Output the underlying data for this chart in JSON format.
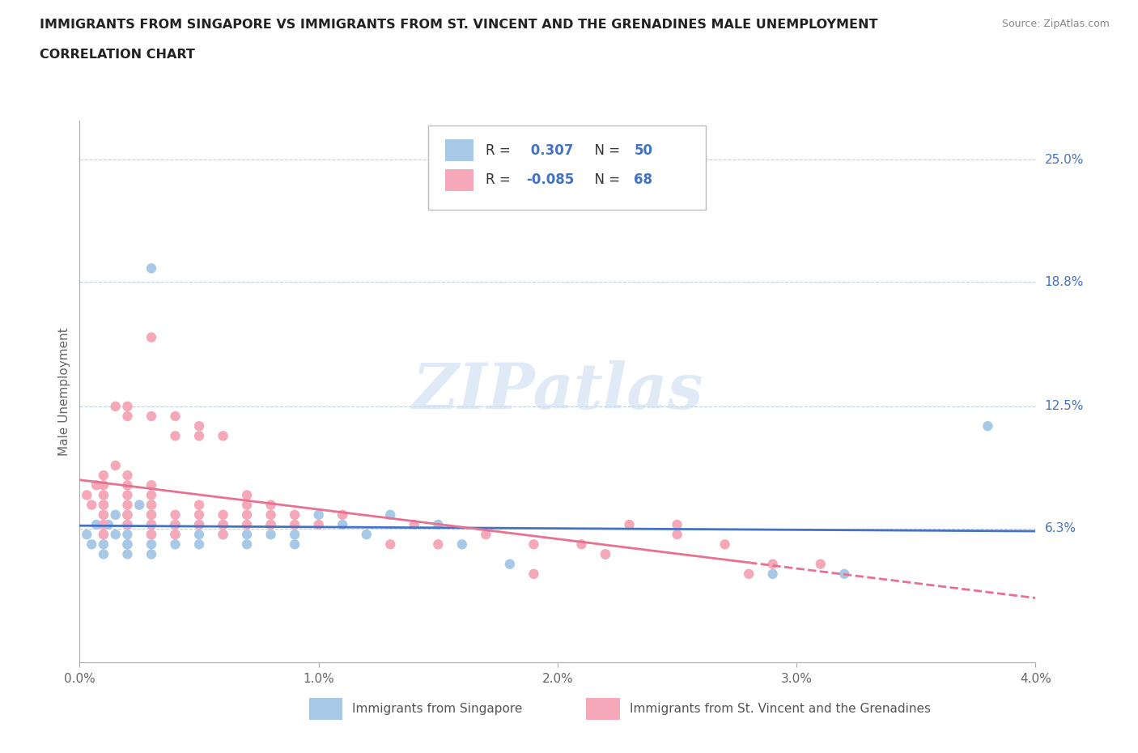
{
  "title_line1": "IMMIGRANTS FROM SINGAPORE VS IMMIGRANTS FROM ST. VINCENT AND THE GRENADINES MALE UNEMPLOYMENT",
  "title_line2": "CORRELATION CHART",
  "source": "Source: ZipAtlas.com",
  "ylabel": "Male Unemployment",
  "xlim": [
    0.0,
    0.04
  ],
  "ylim": [
    -0.005,
    0.27
  ],
  "ytick_vals": [
    0.063,
    0.125,
    0.188,
    0.25
  ],
  "ytick_labels": [
    "6.3%",
    "12.5%",
    "18.8%",
    "25.0%"
  ],
  "xticks": [
    0.0,
    0.01,
    0.02,
    0.03,
    0.04
  ],
  "xtick_labels": [
    "0.0%",
    "1.0%",
    "2.0%",
    "3.0%",
    "4.0%"
  ],
  "gridline_values": [
    0.063,
    0.125,
    0.188,
    0.25
  ],
  "singapore_R": 0.307,
  "singapore_N": 50,
  "stvincent_R": -0.085,
  "stvincent_N": 68,
  "singapore_color": "#a8c8e8",
  "stvincent_color": "#f4a8b8",
  "singapore_line_color": "#4472c4",
  "stvincent_line_color": "#e87090",
  "legend_label_singapore": "Immigrants from Singapore",
  "legend_label_stvincent": "Immigrants from St. Vincent and the Grenadines",
  "watermark": "ZIPatlas",
  "background_color": "#ffffff",
  "singapore_x": [
    0.0003,
    0.0005,
    0.0007,
    0.001,
    0.001,
    0.001,
    0.001,
    0.001,
    0.0012,
    0.0015,
    0.0015,
    0.002,
    0.002,
    0.002,
    0.002,
    0.002,
    0.002,
    0.0025,
    0.003,
    0.003,
    0.003,
    0.003,
    0.003,
    0.003,
    0.003,
    0.004,
    0.004,
    0.004,
    0.005,
    0.005,
    0.005,
    0.006,
    0.006,
    0.007,
    0.007,
    0.008,
    0.008,
    0.009,
    0.009,
    0.01,
    0.011,
    0.012,
    0.013,
    0.015,
    0.016,
    0.018,
    0.022,
    0.029,
    0.032,
    0.038
  ],
  "singapore_y": [
    0.06,
    0.055,
    0.065,
    0.06,
    0.07,
    0.075,
    0.05,
    0.055,
    0.065,
    0.06,
    0.07,
    0.055,
    0.06,
    0.065,
    0.07,
    0.05,
    0.055,
    0.075,
    0.06,
    0.065,
    0.055,
    0.05,
    0.07,
    0.075,
    0.195,
    0.06,
    0.065,
    0.055,
    0.06,
    0.065,
    0.055,
    0.06,
    0.065,
    0.055,
    0.06,
    0.06,
    0.065,
    0.055,
    0.06,
    0.07,
    0.065,
    0.06,
    0.07,
    0.065,
    0.055,
    0.045,
    0.05,
    0.04,
    0.04,
    0.115
  ],
  "stvincent_x": [
    0.0003,
    0.0005,
    0.0007,
    0.001,
    0.001,
    0.001,
    0.001,
    0.001,
    0.001,
    0.001,
    0.0015,
    0.0015,
    0.002,
    0.002,
    0.002,
    0.002,
    0.002,
    0.002,
    0.002,
    0.002,
    0.003,
    0.003,
    0.003,
    0.003,
    0.003,
    0.003,
    0.003,
    0.003,
    0.004,
    0.004,
    0.004,
    0.004,
    0.004,
    0.005,
    0.005,
    0.005,
    0.005,
    0.005,
    0.006,
    0.006,
    0.006,
    0.006,
    0.007,
    0.007,
    0.007,
    0.007,
    0.008,
    0.008,
    0.008,
    0.009,
    0.009,
    0.01,
    0.011,
    0.013,
    0.014,
    0.015,
    0.017,
    0.019,
    0.021,
    0.023,
    0.025,
    0.027,
    0.029,
    0.019,
    0.022,
    0.025,
    0.028,
    0.031
  ],
  "stvincent_y": [
    0.08,
    0.075,
    0.085,
    0.06,
    0.065,
    0.07,
    0.075,
    0.08,
    0.085,
    0.09,
    0.095,
    0.125,
    0.065,
    0.07,
    0.075,
    0.08,
    0.085,
    0.09,
    0.12,
    0.125,
    0.06,
    0.065,
    0.07,
    0.075,
    0.08,
    0.085,
    0.12,
    0.16,
    0.06,
    0.065,
    0.07,
    0.11,
    0.12,
    0.065,
    0.07,
    0.075,
    0.11,
    0.115,
    0.06,
    0.065,
    0.07,
    0.11,
    0.065,
    0.07,
    0.075,
    0.08,
    0.065,
    0.07,
    0.075,
    0.065,
    0.07,
    0.065,
    0.07,
    0.055,
    0.065,
    0.055,
    0.06,
    0.055,
    0.055,
    0.065,
    0.065,
    0.055,
    0.045,
    0.04,
    0.05,
    0.06,
    0.04,
    0.045
  ]
}
